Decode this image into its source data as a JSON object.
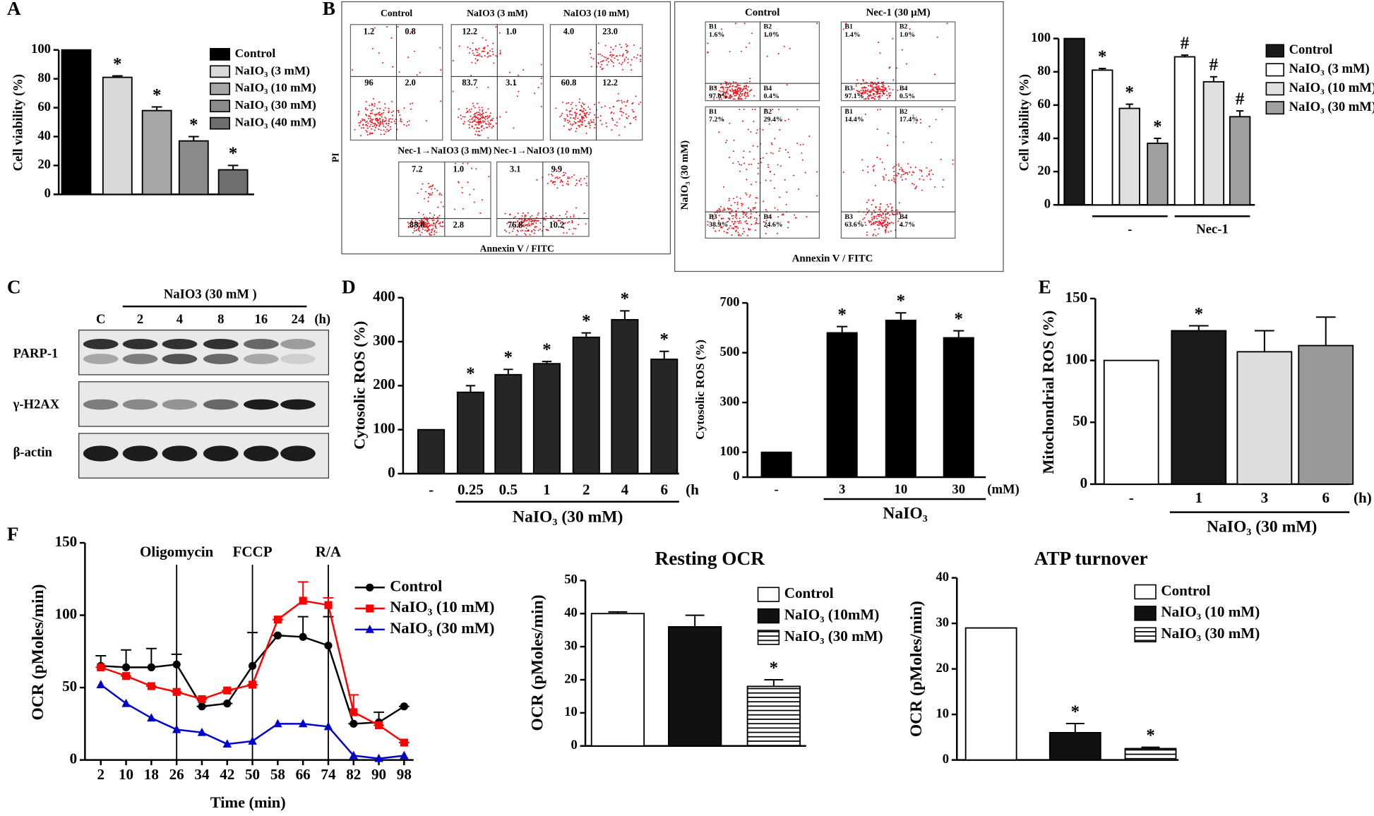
{
  "panel_labels": [
    "A",
    "B",
    "C",
    "D",
    "E",
    "F"
  ],
  "flow_cytometry_1": {
    "titles": [
      "Control",
      "NaIO3 (3 mM)",
      "NaIO3 (10 mM)",
      "Nec-1→NaIO3 (3 mM)",
      "Nec-1→NaIO3 (10 mM)"
    ],
    "quadrants": [
      [
        "1.2",
        "0.8",
        "96",
        "2.0"
      ],
      [
        "12.2",
        "1.0",
        "83.7",
        "3.1"
      ],
      [
        "4.0",
        "23.0",
        "60.8",
        "12.2"
      ],
      [
        "7.2",
        "1.0",
        "88.8",
        "2.8"
      ],
      [
        "3.1",
        "9.9",
        "76.8",
        "10.2"
      ]
    ],
    "y_label": "PI",
    "x_label": "Annexin V / FITC"
  },
  "flow_cytometry_2": {
    "column_titles": [
      "Control",
      "Nec-1 (30 μM)"
    ],
    "row_label": "NaIO₃ (30 mM)",
    "x_label": "Annexin V / FITC",
    "quadrant_names": [
      "B1",
      "B2",
      "B3",
      "B4"
    ],
    "quadrants": [
      [
        "1.6%",
        "1.0%",
        "97.0%",
        "0.4%"
      ],
      [
        "1.4%",
        "1.0%",
        "97.1%",
        "0.5%"
      ],
      [
        "7.2%",
        "29.4%",
        "38.9%",
        "24.6%"
      ],
      [
        "14.4%",
        "17.4%",
        "63.6%",
        "4.7%"
      ]
    ]
  },
  "western_blot": {
    "treatment": "NaIO3 (30 mM )",
    "lanes": [
      "C",
      "2",
      "4",
      "8",
      "16",
      "24",
      "(h)"
    ],
    "rows": [
      "PARP-1",
      "γ-H2AX",
      "β-actin"
    ]
  },
  "chart_data": [
    {
      "type": "bar",
      "ylabel": "Cell viability (%)",
      "categories": [
        null
      ],
      "series": [
        {
          "name": "Control",
          "color": "#000000",
          "values": [
            100
          ]
        },
        {
          "name": "NaIO₃ (3 mM)",
          "color": "#d9d9d9",
          "values": [
            81
          ],
          "errors": [
            1
          ],
          "annotations": [
            "*"
          ]
        },
        {
          "name": "NaIO₃ (10 mM)",
          "color": "#a6a6a6",
          "values": [
            58
          ],
          "errors": [
            2.5
          ],
          "annotations": [
            "*"
          ]
        },
        {
          "name": "NaIO₃ (30 mM)",
          "color": "#8a8a8a",
          "values": [
            37
          ],
          "errors": [
            3
          ],
          "annotations": [
            "*"
          ]
        },
        {
          "name": "NaIO₃ (40 mM)",
          "color": "#6e6e6e",
          "values": [
            17
          ],
          "errors": [
            3
          ],
          "annotations": [
            "*"
          ]
        }
      ],
      "ylim": [
        0,
        100
      ],
      "yticks": [
        0,
        20,
        40,
        60,
        80,
        100
      ],
      "legend": "right"
    },
    {
      "type": "bar",
      "ylabel": "Cell viability (%)",
      "categories": [
        "-",
        "Nec-1"
      ],
      "series": [
        {
          "name": "Control",
          "color": "#1a1a1a",
          "values": [
            100,
            null
          ]
        },
        {
          "name": "NaIO₃ (3 mM)",
          "color": "#ffffff",
          "values": [
            81,
            89
          ],
          "errors": [
            1,
            1
          ],
          "annotations": [
            "*",
            "#"
          ]
        },
        {
          "name": "NaIO₃ (10 mM)",
          "color": "#e0e0e0",
          "values": [
            58,
            74
          ],
          "errors": [
            2.5,
            3
          ],
          "annotations": [
            "*",
            "#"
          ]
        },
        {
          "name": "NaIO₃ (30 mM)",
          "color": "#a0a0a0",
          "values": [
            37,
            53
          ],
          "errors": [
            3,
            3.5
          ],
          "annotations": [
            "*",
            "#"
          ]
        }
      ],
      "ylim": [
        0,
        100
      ],
      "yticks": [
        0,
        20,
        40,
        60,
        80,
        100
      ],
      "legend": "right"
    },
    {
      "type": "bar",
      "ylabel": "Cytosolic ROS (%)",
      "categories": [
        "-",
        "0.25",
        "0.5",
        "1",
        "2",
        "4",
        "6"
      ],
      "x_unit": "(h",
      "group_label": "NaIO₃ (30 mM)",
      "color": "#262626",
      "values": [
        100,
        185,
        225,
        250,
        310,
        350,
        260
      ],
      "errors": [
        null,
        15,
        12,
        5,
        10,
        20,
        18
      ],
      "annotations": [
        null,
        "*",
        "*",
        "*",
        "*",
        "*",
        "*"
      ],
      "ylim": [
        0,
        400
      ],
      "yticks": [
        0,
        100,
        200,
        300,
        400
      ]
    },
    {
      "type": "bar",
      "ylabel": "Cytosolic ROS (%)",
      "categories": [
        "-",
        "3",
        "10",
        "30"
      ],
      "x_unit": "(mM)",
      "group_label": "NaIO₃",
      "color": "#000000",
      "values": [
        100,
        580,
        630,
        560
      ],
      "errors": [
        null,
        25,
        30,
        28
      ],
      "annotations": [
        null,
        "*",
        "*",
        "*"
      ],
      "ylim": [
        0,
        700
      ],
      "yticks": [
        0,
        100,
        300,
        500,
        700
      ]
    },
    {
      "type": "bar",
      "ylabel": "Mitochondrial ROS (%)",
      "categories": [
        "-",
        "1",
        "3",
        "6"
      ],
      "x_unit": "(h)",
      "group_label": "NaIO₃ (30 mM)",
      "colors": [
        "#ffffff",
        "#1a1a1a",
        "#dddddd",
        "#999999"
      ],
      "values": [
        100,
        124,
        107,
        112
      ],
      "errors": [
        null,
        4,
        17,
        23
      ],
      "annotations": [
        null,
        "*",
        null,
        null
      ],
      "ylim": [
        0,
        150
      ],
      "yticks": [
        0,
        50,
        100,
        150
      ]
    },
    {
      "type": "line",
      "xlabel": "Time (min)",
      "ylabel": "OCR (pMoles/min)",
      "x": [
        2,
        10,
        18,
        26,
        34,
        42,
        50,
        58,
        66,
        74,
        82,
        90,
        98
      ],
      "series": [
        {
          "name": "Control",
          "color": "#000000",
          "marker": "circle",
          "values": [
            65,
            64,
            64,
            66,
            37,
            39,
            65,
            86,
            85,
            79,
            25,
            26,
            37
          ],
          "errors": [
            7,
            12,
            13,
            7,
            0,
            0,
            23,
            0,
            14,
            20,
            0,
            7,
            0
          ]
        },
        {
          "name": "NaIO₃ (10 mM)",
          "color": "#ff0000",
          "marker": "square",
          "values": [
            64,
            58,
            51,
            47,
            42,
            48,
            52,
            97,
            110,
            107,
            33,
            24,
            12
          ],
          "errors": [
            0,
            0,
            0,
            0,
            0,
            0,
            0,
            0,
            13,
            5,
            12,
            0,
            0
          ]
        },
        {
          "name": "NaIO₃ (30 mM)",
          "color": "#0000cc",
          "marker": "triangle",
          "values": [
            52,
            39,
            29,
            21,
            19,
            11,
            13,
            25,
            25,
            23,
            3,
            1,
            3
          ]
        }
      ],
      "events": [
        {
          "x": 26,
          "label": "Oligomycin"
        },
        {
          "x": 50,
          "label": "FCCP"
        },
        {
          "x": 74,
          "label": "R/A"
        }
      ],
      "xlim": [
        -3,
        101
      ],
      "xticks": [
        2,
        10,
        18,
        26,
        34,
        42,
        50,
        58,
        66,
        74,
        82,
        90,
        98
      ],
      "ylim": [
        0,
        150
      ],
      "yticks": [
        0,
        50,
        100,
        150
      ],
      "legend": "upper right"
    },
    {
      "type": "bar",
      "title": "Resting OCR",
      "ylabel": "OCR (pMoles/min)",
      "categories": [
        null
      ],
      "series": [
        {
          "name": "Control",
          "color": "#ffffff",
          "values": [
            40
          ],
          "errors": [
            0.5
          ]
        },
        {
          "name": "NaIO₃ (10mM)",
          "color": "#111111",
          "values": [
            36
          ],
          "errors": [
            3.5
          ]
        },
        {
          "name": "NaIO₃ (30 mM)",
          "color": "#ffffff",
          "pattern": "horizontal-lines",
          "values": [
            18
          ],
          "errors": [
            2
          ],
          "annotations": [
            "*"
          ]
        }
      ],
      "ylim": [
        0,
        50
      ],
      "yticks": [
        0,
        10,
        20,
        30,
        40,
        50
      ],
      "legend": "upper right"
    },
    {
      "type": "bar",
      "title": "ATP turnover",
      "ylabel": "OCR (pMoles/min)",
      "categories": [
        null
      ],
      "series": [
        {
          "name": "Control",
          "color": "#ffffff",
          "values": [
            29
          ]
        },
        {
          "name": "NaIO₃ (10 mM)",
          "color": "#111111",
          "values": [
            6
          ],
          "errors": [
            2
          ],
          "annotations": [
            "*"
          ]
        },
        {
          "name": "NaIO₃ (30 mM)",
          "color": "#ffffff",
          "pattern": "horizontal-lines",
          "values": [
            2.5
          ],
          "errors": [
            0.3
          ],
          "annotations": [
            "*"
          ]
        }
      ],
      "ylim": [
        0,
        40
      ],
      "yticks": [
        0,
        10,
        20,
        30,
        40
      ],
      "legend": "upper right"
    }
  ]
}
